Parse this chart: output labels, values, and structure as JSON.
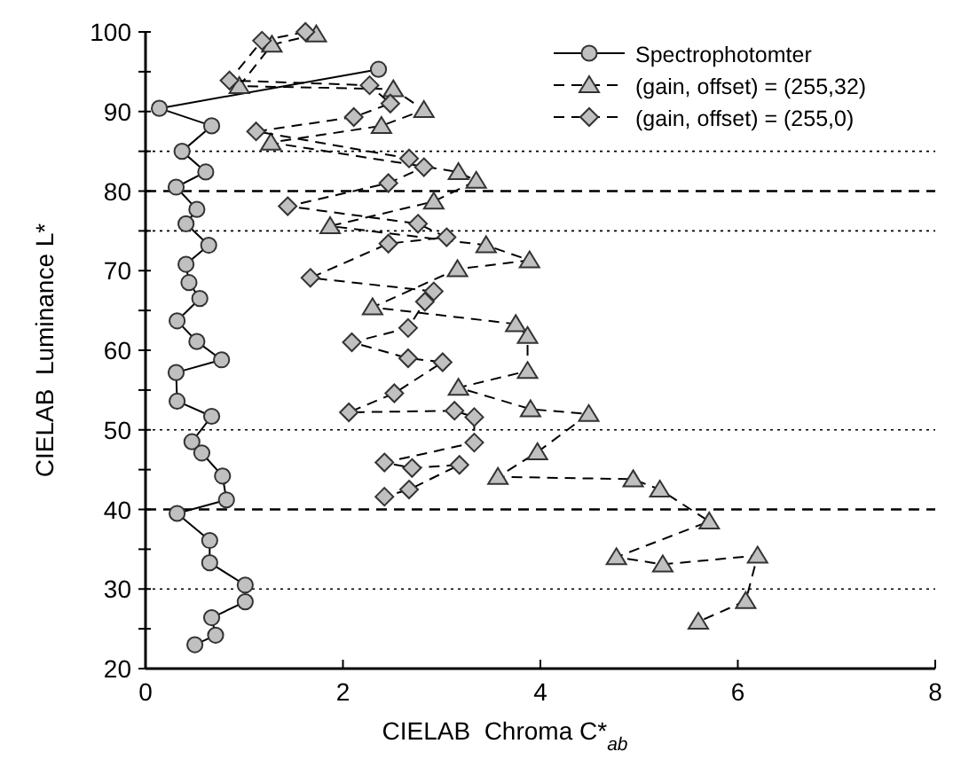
{
  "chart_data": {
    "type": "line",
    "xlabel": "CIELAB  Chroma C*$_{ab}$",
    "ylabel": "CIELAB  Luminance L*",
    "xlim": [
      0,
      8
    ],
    "ylim": [
      20,
      100
    ],
    "xticks": [
      0,
      2,
      4,
      6,
      8
    ],
    "yticks": [
      20,
      {
        "value": 25,
        "label": null
      },
      30,
      {
        "value": 35,
        "label": null
      },
      40,
      {
        "value": 45,
        "label": null
      },
      50,
      {
        "value": 55,
        "label": null
      },
      60,
      {
        "value": 65,
        "label": null
      },
      70,
      {
        "value": 75,
        "label": null
      },
      80,
      {
        "value": 85,
        "label": null
      },
      90,
      {
        "value": 95,
        "label": null
      },
      100
    ],
    "grid": false,
    "legend": "top right",
    "ref_lines": [
      {
        "axis": "y",
        "value": 85,
        "line_style": "dotted",
        "color": "#000000"
      },
      {
        "axis": "y",
        "value": 80,
        "line_style": "dashed",
        "color": "#000000"
      },
      {
        "axis": "y",
        "value": 75,
        "line_style": "dotted",
        "color": "#000000"
      },
      {
        "axis": "y",
        "value": 50,
        "line_style": "dotted",
        "color": "#000000"
      },
      {
        "axis": "y",
        "value": 40,
        "line_style": "dashed",
        "color": "#000000"
      },
      {
        "axis": "y",
        "value": 30,
        "line_style": "dotted",
        "color": "#000000"
      }
    ],
    "series": [
      {
        "name": "Spectrophotomter",
        "color": "#c0c0c0",
        "marker": "circle",
        "line_style": "solid",
        "x": [
          2.36,
          0.14,
          0.67,
          0.37,
          0.61,
          0.31,
          0.52,
          0.41,
          0.64,
          0.41,
          0.44,
          0.55,
          0.32,
          0.52,
          0.77,
          0.31,
          0.32,
          0.67,
          0.47,
          0.57,
          0.78,
          0.82,
          0.32,
          0.65,
          0.65,
          1.01,
          1.01,
          0.67,
          0.71,
          0.5
        ],
        "values": [
          95.3,
          90.4,
          88.2,
          85.0,
          82.4,
          80.5,
          77.7,
          75.9,
          73.2,
          70.8,
          68.5,
          66.5,
          63.7,
          61.1,
          58.8,
          57.2,
          53.6,
          51.7,
          48.5,
          47.1,
          44.2,
          41.2,
          39.5,
          36.1,
          33.3,
          30.5,
          28.4,
          26.4,
          24.2,
          23.0
        ]
      },
      {
        "name": "(gain, offset) = (255,32)",
        "color": "#c0c0c0",
        "marker": "triangle",
        "line_style": "dashed",
        "x": [
          1.73,
          1.28,
          0.95,
          2.51,
          2.82,
          2.39,
          1.27,
          3.17,
          3.35,
          2.92,
          1.87,
          3.45,
          3.89,
          3.16,
          2.3,
          3.75,
          3.87,
          3.87,
          3.17,
          3.9,
          4.49,
          3.97,
          3.57,
          4.94,
          5.21,
          5.71,
          4.77,
          5.24,
          6.2,
          6.08,
          5.6
        ],
        "values": [
          99.7,
          98.4,
          93.2,
          92.8,
          90.2,
          88.2,
          86.1,
          82.4,
          81.3,
          78.7,
          75.6,
          73.2,
          71.3,
          70.2,
          65.4,
          63.3,
          61.8,
          57.4,
          55.3,
          52.6,
          52.0,
          47.2,
          44.1,
          43.8,
          42.5,
          38.5,
          34.0,
          33.1,
          34.2,
          28.5,
          25.9
        ]
      },
      {
        "name": "(gain, offset) = (255,0)",
        "color": "#c0c0c0",
        "marker": "diamond",
        "line_style": "dashed",
        "x": [
          1.62,
          1.18,
          0.85,
          2.27,
          2.48,
          2.11,
          1.12,
          2.67,
          2.82,
          2.46,
          1.44,
          2.76,
          3.05,
          2.46,
          1.67,
          2.92,
          2.83,
          2.66,
          2.09,
          2.66,
          3.01,
          2.52,
          2.06,
          3.13,
          3.33,
          3.33,
          2.42,
          2.7,
          3.18,
          2.67,
          2.42
        ],
        "values": [
          100.0,
          98.9,
          93.9,
          93.3,
          91.0,
          89.3,
          87.5,
          84.1,
          83.0,
          81.0,
          78.1,
          75.9,
          74.2,
          73.4,
          69.1,
          67.4,
          66.1,
          62.8,
          61.0,
          59.0,
          58.5,
          54.6,
          52.2,
          52.4,
          51.6,
          48.4,
          45.9,
          45.2,
          45.6,
          42.5,
          41.6
        ]
      }
    ]
  }
}
